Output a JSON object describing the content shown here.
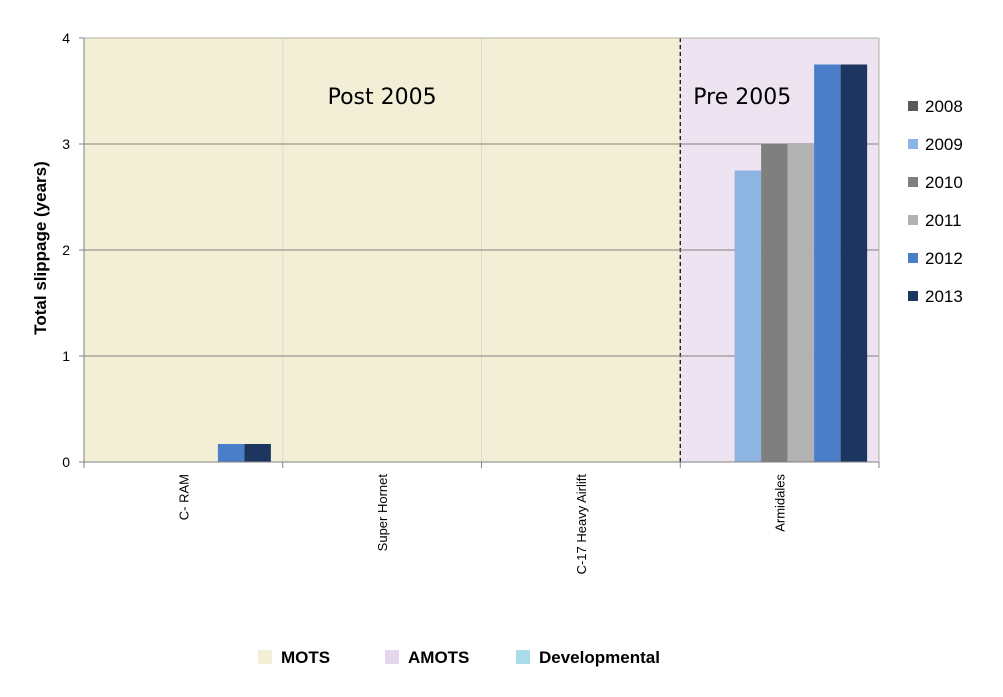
{
  "chart_data": {
    "type": "bar",
    "ylabel": "Total slippage (years)",
    "ylim": [
      0,
      4
    ],
    "yticks": [
      0,
      1,
      2,
      3,
      4
    ],
    "categories": [
      "C- RAM",
      "Super Hornet",
      "C-17 Heavy Airlift",
      "Armidales"
    ],
    "series": [
      {
        "name": "2008",
        "color": "#595959",
        "values": [
          0,
          0,
          0,
          0
        ]
      },
      {
        "name": "2009",
        "color": "#8eb4e3",
        "values": [
          0,
          0,
          0,
          2.75
        ]
      },
      {
        "name": "2010",
        "color": "#7f7f7f",
        "values": [
          0,
          0,
          0,
          3.0
        ]
      },
      {
        "name": "2011",
        "color": "#b2b2b2",
        "values": [
          0,
          0,
          0,
          3.0
        ]
      },
      {
        "name": "2012",
        "color": "#4a7ec8",
        "values": [
          0.17,
          0,
          0,
          3.75
        ]
      },
      {
        "name": "2013",
        "color": "#1c365f",
        "values": [
          0.17,
          0,
          0,
          3.75
        ]
      }
    ],
    "regions": [
      {
        "label": "Post 2005",
        "categories": [
          "C- RAM",
          "Super Hornet",
          "C-17 Heavy Airlift"
        ],
        "color": "#f3efd6",
        "type": "MOTS"
      },
      {
        "label": "Pre 2005",
        "categories": [
          "Armidales"
        ],
        "color": "#ede3f1",
        "type": "AMOTS"
      }
    ],
    "bottom_legend": [
      {
        "label": "MOTS",
        "color": "#f3efd6"
      },
      {
        "label": "AMOTS",
        "color": "#e6d8ec"
      },
      {
        "label": "Developmental",
        "color": "#a9dbe8"
      }
    ],
    "grid": true,
    "legend": "right"
  }
}
